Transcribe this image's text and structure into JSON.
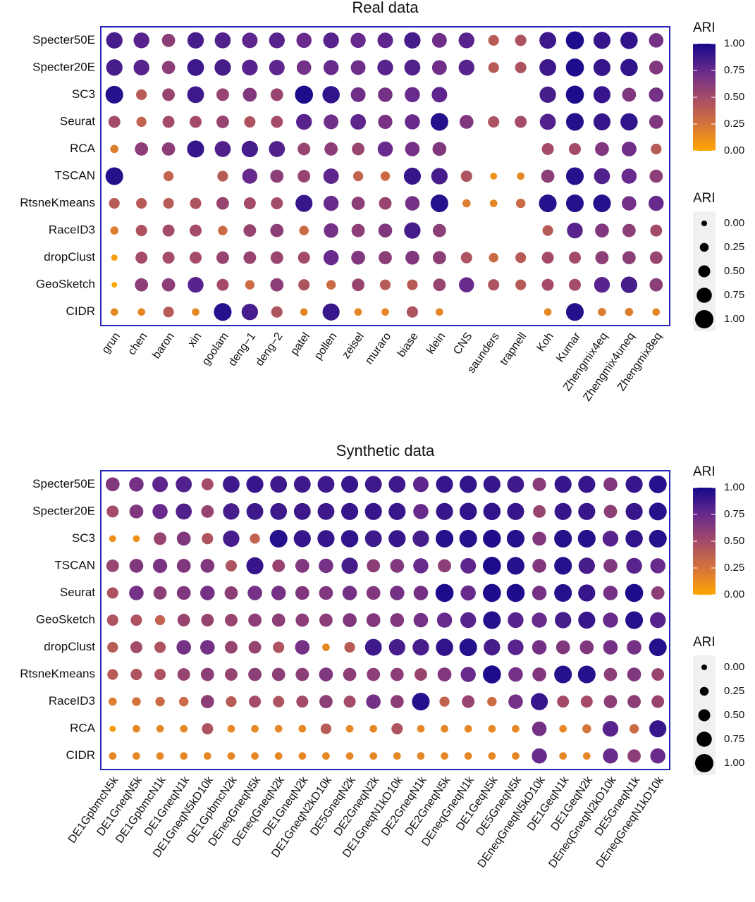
{
  "chart_data": [
    {
      "type": "dot",
      "title": "Real data",
      "categories": [
        "grun",
        "chen",
        "baron",
        "xin",
        "goolam",
        "deng−1",
        "deng−2",
        "patel",
        "pollen",
        "zeisel",
        "muraro",
        "biase",
        "klein",
        "CNS",
        "saunders",
        "trapnell",
        "Koh",
        "Kumar",
        "Zhengmix4eq",
        "Zhengmix4uneq",
        "Zhengmix8eq"
      ],
      "rows": [
        "Specter50E",
        "Specter20E",
        "SC3",
        "Seurat",
        "RCA",
        "TSCAN",
        "RtsneKmeans",
        "RaceID3",
        "dropClust",
        "GeoSketch",
        "CIDR"
      ],
      "values": [
        [
          0.85,
          0.8,
          0.6,
          0.85,
          0.82,
          0.78,
          0.8,
          0.75,
          0.8,
          0.75,
          0.78,
          0.85,
          0.72,
          0.8,
          0.4,
          0.45,
          0.88,
          0.98,
          0.9,
          0.92,
          0.7
        ],
        [
          0.85,
          0.8,
          0.6,
          0.88,
          0.85,
          0.8,
          0.78,
          0.7,
          0.75,
          0.72,
          0.8,
          0.82,
          0.72,
          0.8,
          0.4,
          0.45,
          0.88,
          0.98,
          0.9,
          0.92,
          0.65
        ],
        [
          0.95,
          0.4,
          0.55,
          0.88,
          0.55,
          0.65,
          0.55,
          0.98,
          0.92,
          0.72,
          0.7,
          0.75,
          0.78,
          null,
          null,
          null,
          0.85,
          0.98,
          0.9,
          0.65,
          0.7
        ],
        [
          0.5,
          0.35,
          0.5,
          0.5,
          0.55,
          0.45,
          0.5,
          0.8,
          0.72,
          0.78,
          0.68,
          0.75,
          0.95,
          0.65,
          0.45,
          0.5,
          0.82,
          0.95,
          0.9,
          0.92,
          0.65
        ],
        [
          0.2,
          0.6,
          0.6,
          0.9,
          0.82,
          0.85,
          0.82,
          0.55,
          0.6,
          0.55,
          0.75,
          0.7,
          0.65,
          null,
          null,
          null,
          0.5,
          0.5,
          0.65,
          0.72,
          0.4
        ],
        [
          0.95,
          null,
          0.35,
          null,
          0.4,
          0.75,
          0.6,
          0.55,
          0.78,
          0.35,
          0.3,
          0.9,
          0.85,
          0.45,
          0.1,
          0.15,
          0.6,
          0.95,
          0.82,
          0.75,
          0.6
        ],
        [
          0.4,
          0.4,
          0.4,
          0.45,
          0.55,
          0.5,
          0.5,
          0.9,
          0.75,
          0.6,
          0.55,
          0.7,
          0.95,
          0.2,
          0.15,
          0.3,
          0.95,
          0.95,
          0.95,
          0.7,
          0.75
        ],
        [
          0.2,
          0.45,
          0.5,
          0.5,
          0.3,
          0.55,
          0.6,
          0.3,
          0.7,
          0.6,
          0.65,
          0.85,
          0.6,
          null,
          null,
          null,
          0.4,
          0.8,
          0.65,
          0.6,
          0.5
        ],
        [
          0.05,
          0.5,
          0.5,
          0.5,
          0.55,
          0.55,
          0.55,
          0.5,
          0.75,
          0.65,
          0.6,
          0.65,
          0.6,
          0.45,
          0.3,
          0.4,
          0.5,
          0.5,
          0.6,
          0.6,
          0.55
        ],
        [
          0.0,
          0.6,
          0.6,
          0.8,
          0.5,
          0.3,
          0.6,
          0.45,
          0.3,
          0.55,
          0.4,
          0.4,
          0.55,
          0.75,
          0.45,
          0.4,
          0.5,
          0.5,
          0.8,
          0.85,
          0.6
        ],
        [
          0.15,
          0.15,
          0.4,
          0.15,
          0.95,
          0.85,
          0.45,
          0.15,
          0.9,
          0.15,
          0.15,
          0.45,
          0.15,
          null,
          null,
          null,
          0.15,
          0.95,
          0.2,
          0.2,
          0.15
        ]
      ],
      "clim": [
        0,
        1
      ],
      "color_scale": [
        "#FFA500",
        "#D4733C",
        "#A44B69",
        "#682A8C",
        "#16098C"
      ],
      "legend": {
        "color_title": "ARI",
        "size_title": "ARI",
        "ticks": [
          {
            "value": 0,
            "label": "0.00"
          },
          {
            "value": 0.25,
            "label": "0.25"
          },
          {
            "value": 0.5,
            "label": "0.50"
          },
          {
            "value": 0.75,
            "label": "0.75"
          },
          {
            "value": 1,
            "label": "1.00"
          }
        ]
      }
    },
    {
      "type": "dot",
      "title": "Synthetic data",
      "categories": [
        "DE1GpbmcN5k",
        "DE1GneqN5k",
        "DE1GpbmcN1k",
        "DE1GneqN1k",
        "DE1GneqN5kD10k",
        "DE1GpbmcN2k",
        "DEneqGneqN5k",
        "DEneqGneqN2k",
        "DE1GneqN2k",
        "DE1GneqN2kD10k",
        "DE5GneqN2k",
        "DE2GneqN2k",
        "DE1GneqN1kD10k",
        "DE2GneqN1k",
        "DE2GneqN5k",
        "DEneqGneqN1k",
        "DE1GeqN5k",
        "DE5GneqN5k",
        "DEneqGneqN5kD10k",
        "DE1GeqN1k",
        "DE1GeqN2k",
        "DEneqGneqN2kD10k",
        "DE5GneqN1k",
        "DEneqGneqN1kD10k"
      ],
      "rows": [
        "Specter50E",
        "Specter20E",
        "SC3",
        "TSCAN",
        "Seurat",
        "GeoSketch",
        "dropClust",
        "RtsneKmeans",
        "RaceID3",
        "RCA",
        "CIDR"
      ],
      "values": [
        [
          0.65,
          0.7,
          0.78,
          0.82,
          0.5,
          0.88,
          0.9,
          0.88,
          0.88,
          0.88,
          0.9,
          0.88,
          0.88,
          0.78,
          0.9,
          0.92,
          0.9,
          0.88,
          0.62,
          0.9,
          0.9,
          0.65,
          0.9,
          0.95
        ],
        [
          0.5,
          0.65,
          0.75,
          0.82,
          0.55,
          0.85,
          0.88,
          0.88,
          0.88,
          0.88,
          0.9,
          0.9,
          0.9,
          0.75,
          0.9,
          0.92,
          0.92,
          0.9,
          0.55,
          0.9,
          0.9,
          0.6,
          0.9,
          0.95
        ],
        [
          0.1,
          0.1,
          0.55,
          0.65,
          0.45,
          0.85,
          0.35,
          0.95,
          0.9,
          0.9,
          0.92,
          0.88,
          0.9,
          0.85,
          0.95,
          0.95,
          0.97,
          0.95,
          0.65,
          0.95,
          0.95,
          0.8,
          0.92,
          0.95
        ],
        [
          0.55,
          0.65,
          0.68,
          0.65,
          0.65,
          0.45,
          0.9,
          0.55,
          0.65,
          0.7,
          0.85,
          0.6,
          0.65,
          0.75,
          0.6,
          0.78,
          0.98,
          0.95,
          0.65,
          0.95,
          0.85,
          0.65,
          0.8,
          0.75
        ],
        [
          0.45,
          0.7,
          0.6,
          0.65,
          0.7,
          0.6,
          0.7,
          0.7,
          0.65,
          0.65,
          0.7,
          0.65,
          0.7,
          0.7,
          0.98,
          0.75,
          0.98,
          0.98,
          0.7,
          0.95,
          0.9,
          0.7,
          0.98,
          0.6
        ],
        [
          0.45,
          0.45,
          0.35,
          0.55,
          0.55,
          0.55,
          0.6,
          0.6,
          0.6,
          0.6,
          0.65,
          0.65,
          0.65,
          0.7,
          0.75,
          0.8,
          0.95,
          0.8,
          0.75,
          0.85,
          0.9,
          0.75,
          0.95,
          0.8
        ],
        [
          0.4,
          0.5,
          0.45,
          0.7,
          0.7,
          0.55,
          0.55,
          0.45,
          0.7,
          0.15,
          0.4,
          0.88,
          0.85,
          0.85,
          0.92,
          0.95,
          0.85,
          0.8,
          0.7,
          0.65,
          0.65,
          0.7,
          0.7,
          0.95
        ],
        [
          0.4,
          0.45,
          0.45,
          0.55,
          0.6,
          0.55,
          0.6,
          0.6,
          0.6,
          0.65,
          0.6,
          0.6,
          0.6,
          0.55,
          0.65,
          0.75,
          0.98,
          0.7,
          0.65,
          0.95,
          0.95,
          0.6,
          0.65,
          0.55
        ],
        [
          0.2,
          0.25,
          0.3,
          0.3,
          0.6,
          0.4,
          0.5,
          0.45,
          0.5,
          0.6,
          0.5,
          0.7,
          0.6,
          0.95,
          0.35,
          0.55,
          0.3,
          0.7,
          0.9,
          0.5,
          0.5,
          0.6,
          0.6,
          0.55
        ],
        [
          0.05,
          0.15,
          0.15,
          0.15,
          0.45,
          0.15,
          0.15,
          0.15,
          0.15,
          0.4,
          0.15,
          0.15,
          0.45,
          0.15,
          0.15,
          0.15,
          0.15,
          0.15,
          0.7,
          0.15,
          0.25,
          0.8,
          0.3,
          0.9
        ],
        [
          0.15,
          0.15,
          0.15,
          0.15,
          0.15,
          0.15,
          0.15,
          0.15,
          0.15,
          0.15,
          0.15,
          0.15,
          0.15,
          0.15,
          0.15,
          0.15,
          0.15,
          0.15,
          0.75,
          0.15,
          0.15,
          0.75,
          0.6,
          0.75
        ]
      ],
      "clim": [
        0,
        1
      ],
      "color_scale": [
        "#FFA500",
        "#D4733C",
        "#A44B69",
        "#682A8C",
        "#16098C"
      ],
      "legend": {
        "color_title": "ARI",
        "size_title": "ARI",
        "ticks": [
          {
            "value": 0,
            "label": "0.00"
          },
          {
            "value": 0.25,
            "label": "0.25"
          },
          {
            "value": 0.5,
            "label": "0.50"
          },
          {
            "value": 0.75,
            "label": "0.75"
          },
          {
            "value": 1,
            "label": "1.00"
          }
        ]
      }
    }
  ]
}
